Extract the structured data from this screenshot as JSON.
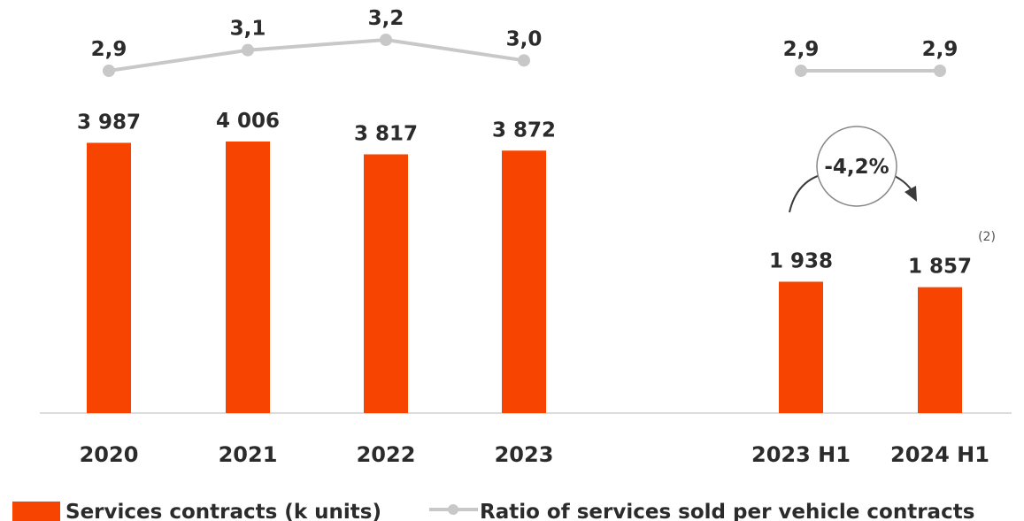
{
  "chart_data": {
    "type": "bar",
    "categories": [
      "2020",
      "2021",
      "2022",
      "2023",
      "2023 H1",
      "2024 H1"
    ],
    "series": [
      {
        "name": "Services contracts (k units)",
        "values": [
          3987,
          4006,
          3817,
          3872,
          1938,
          1857
        ],
        "labels": [
          "3 987",
          "4 006",
          "3 817",
          "3 872",
          "1 938",
          "1 857"
        ]
      },
      {
        "name": "Ratio of services sold per vehicle contracts",
        "type": "line",
        "values": [
          2.9,
          3.1,
          3.2,
          3.0,
          2.9,
          2.9
        ],
        "labels": [
          "2,9",
          "3,1",
          "3,2",
          "3,0",
          "2,9",
          "2,9"
        ]
      }
    ],
    "annotation": "-4,2%",
    "footnote": "(2)",
    "colors": {
      "bar": "#f74400",
      "line": "#c8c8c8",
      "text": "#2b2b2b"
    },
    "ylim": [
      0,
      4006
    ]
  }
}
